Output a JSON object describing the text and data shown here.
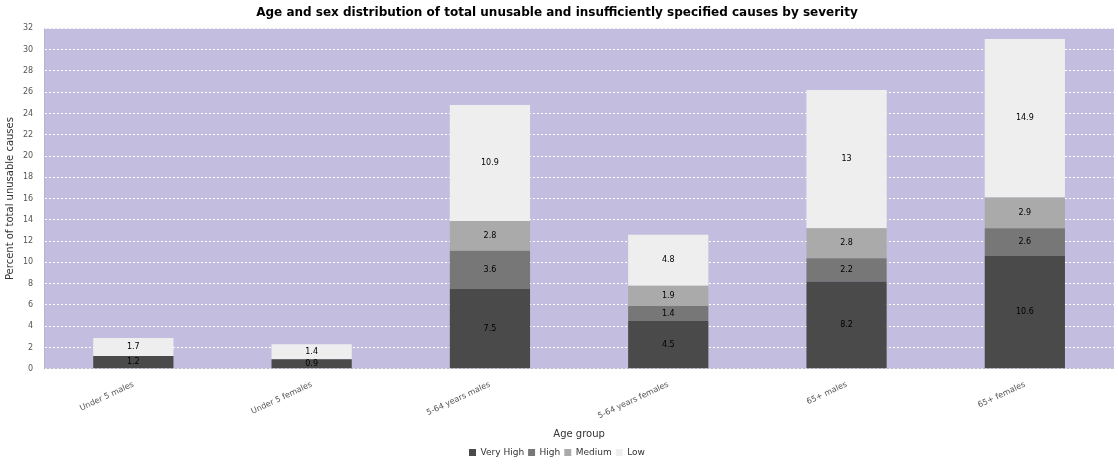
{
  "chart_data": {
    "type": "bar",
    "title": "Age and sex distribution of total unusable and insufficiently specified causes by severity",
    "xlabel": "Age group",
    "ylabel": "Percent of total unusable causes",
    "categories": [
      "Under 5 males",
      "Under 5 females",
      "5-64 years males",
      "5-64 years females",
      "65+ males",
      "65+ females"
    ],
    "stacked": true,
    "series": [
      {
        "name": "Very High",
        "color": "#4a4a4a",
        "values": [
          1.2,
          0.9,
          7.5,
          4.5,
          8.2,
          10.6
        ]
      },
      {
        "name": "High",
        "color": "#777777",
        "values": [
          null,
          null,
          3.6,
          1.4,
          2.2,
          2.6
        ]
      },
      {
        "name": "Medium",
        "color": "#aaaaaa",
        "values": [
          null,
          null,
          2.8,
          1.9,
          2.8,
          2.9
        ]
      },
      {
        "name": "Low",
        "color": "#eeeeee",
        "values": [
          1.7,
          1.4,
          10.9,
          4.8,
          13,
          14.9
        ]
      }
    ],
    "ylim": [
      0,
      32
    ],
    "yticks": [
      0,
      2,
      4,
      6,
      8,
      10,
      12,
      14,
      16,
      18,
      20,
      22,
      24,
      26,
      28,
      30,
      32
    ],
    "grid": "y",
    "legend": "bottom",
    "data_labels": true
  }
}
